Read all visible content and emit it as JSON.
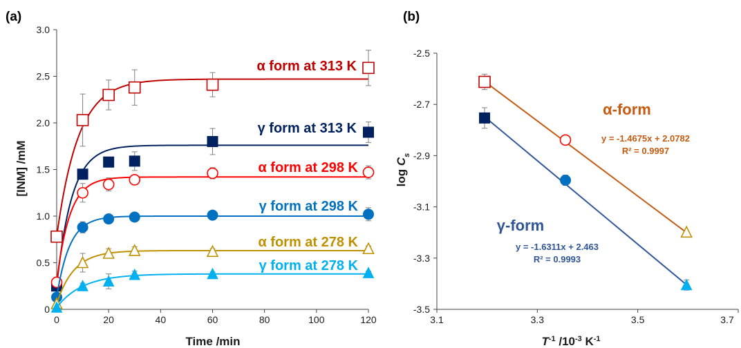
{
  "chart_data": [
    {
      "type": "scatter",
      "panel_label": "(a)",
      "xlabel": "Time /min",
      "ylabel": "[INM] /mM",
      "xlim": [
        0,
        120
      ],
      "ylim": [
        0,
        3.0
      ],
      "x_ticks": [
        "0",
        "20",
        "40",
        "60",
        "80",
        "100",
        "120"
      ],
      "y_ticks": [
        "0",
        "0.5",
        "1.0",
        "1.5",
        "2.0",
        "2.5",
        "3.0"
      ],
      "grid": false,
      "series": [
        {
          "name": "α form at 313 K",
          "marker": "open-square",
          "color": "#c00000",
          "x": [
            0,
            10,
            20,
            30,
            60,
            120
          ],
          "y": [
            0.78,
            2.03,
            2.3,
            2.38,
            2.41,
            2.59
          ],
          "err": [
            0.0,
            0.28,
            0.16,
            0.19,
            0.13,
            0.19
          ],
          "plateau": 2.47,
          "rate": 0.12
        },
        {
          "name": "γ form at 313 K",
          "marker": "filled-square",
          "color": "#002060",
          "x": [
            0,
            10,
            20,
            30,
            60,
            120
          ],
          "y": [
            0.25,
            1.45,
            1.58,
            1.59,
            1.8,
            1.9
          ],
          "err": [
            0.0,
            0.04,
            0.05,
            0.1,
            0.14,
            0.11
          ],
          "plateau": 1.76,
          "rate": 0.17
        },
        {
          "name": "α form at 298 K",
          "marker": "open-circle",
          "color": "#ff0000",
          "x": [
            0,
            10,
            20,
            30,
            60,
            120
          ],
          "y": [
            0.29,
            1.25,
            1.34,
            1.39,
            1.46,
            1.47
          ],
          "err": [
            0.0,
            0.1,
            0.07,
            0.05,
            0.06,
            0.07
          ],
          "plateau": 1.42,
          "rate": 0.2
        },
        {
          "name": "γ form at 298 K",
          "marker": "filled-circle",
          "color": "#0070c0",
          "x": [
            0,
            10,
            20,
            30,
            60,
            120
          ],
          "y": [
            0.13,
            0.88,
            0.97,
            0.99,
            1.01,
            1.02
          ],
          "err": [
            0.0,
            0.06,
            0.04,
            0.03,
            0.03,
            0.07
          ],
          "plateau": 1.0,
          "rate": 0.2
        },
        {
          "name": "α form at 278 K",
          "marker": "open-triangle",
          "color": "#bf9000",
          "x": [
            0,
            10,
            20,
            30,
            60,
            120
          ],
          "y": [
            0.06,
            0.5,
            0.6,
            0.63,
            0.62,
            0.65
          ],
          "err": [
            0.0,
            0.1,
            0.05,
            0.04,
            0.03,
            0.03
          ],
          "plateau": 0.63,
          "rate": 0.15
        },
        {
          "name": "γ form at 278 K",
          "marker": "filled-triangle",
          "color": "#00b0f0",
          "x": [
            0,
            10,
            20,
            30,
            60,
            120
          ],
          "y": [
            0.02,
            0.25,
            0.3,
            0.37,
            0.38,
            0.39
          ],
          "err": [
            0.0,
            0.03,
            0.08,
            0.04,
            0.02,
            0.02
          ],
          "plateau": 0.38,
          "rate": 0.1
        }
      ]
    },
    {
      "type": "scatter",
      "panel_label": "(b)",
      "xlabel": "T⁻¹ /10⁻³ K⁻¹",
      "ylabel": "log Cs",
      "xlim": [
        3.1,
        3.7
      ],
      "ylim": [
        -3.5,
        -2.5
      ],
      "x_ticks": [
        "3.1",
        "3.3",
        "3.5",
        "3.7"
      ],
      "y_ticks": [
        "-2.5",
        "-2.7",
        "-2.9",
        "-3.1",
        "-3.3",
        "-3.5"
      ],
      "grid": false,
      "series": [
        {
          "name": "α-form",
          "color": "#c55a11",
          "points": [
            {
              "x": 3.195,
              "y": -2.612,
              "marker": "open-square",
              "color": "#c00000",
              "err": 0.03
            },
            {
              "x": 3.356,
              "y": -2.839,
              "marker": "open-circle",
              "color": "#ff0000",
              "err": 0.01
            },
            {
              "x": 3.597,
              "y": -3.199,
              "marker": "open-triangle",
              "color": "#bf9000",
              "err": 0.0
            }
          ],
          "fit": {
            "slope": -1.4675,
            "intercept": 2.0782
          },
          "equation": "y = -1.4675x + 2.0782",
          "r2": "R² = 0.9997"
        },
        {
          "name": "γ-form",
          "color": "#2f5597",
          "points": [
            {
              "x": 3.195,
              "y": -2.753,
              "marker": "filled-square",
              "color": "#002060",
              "err": 0.04
            },
            {
              "x": 3.356,
              "y": -2.996,
              "marker": "filled-circle",
              "color": "#0070c0",
              "err": 0.02
            },
            {
              "x": 3.597,
              "y": -3.405,
              "marker": "filled-triangle",
              "color": "#00b0f0",
              "err": 0.02
            }
          ],
          "fit": {
            "slope": -1.6311,
            "intercept": 2.463
          },
          "equation": "y = -1.6311x + 2.463",
          "r2": "R² = 0.9993"
        }
      ]
    }
  ]
}
